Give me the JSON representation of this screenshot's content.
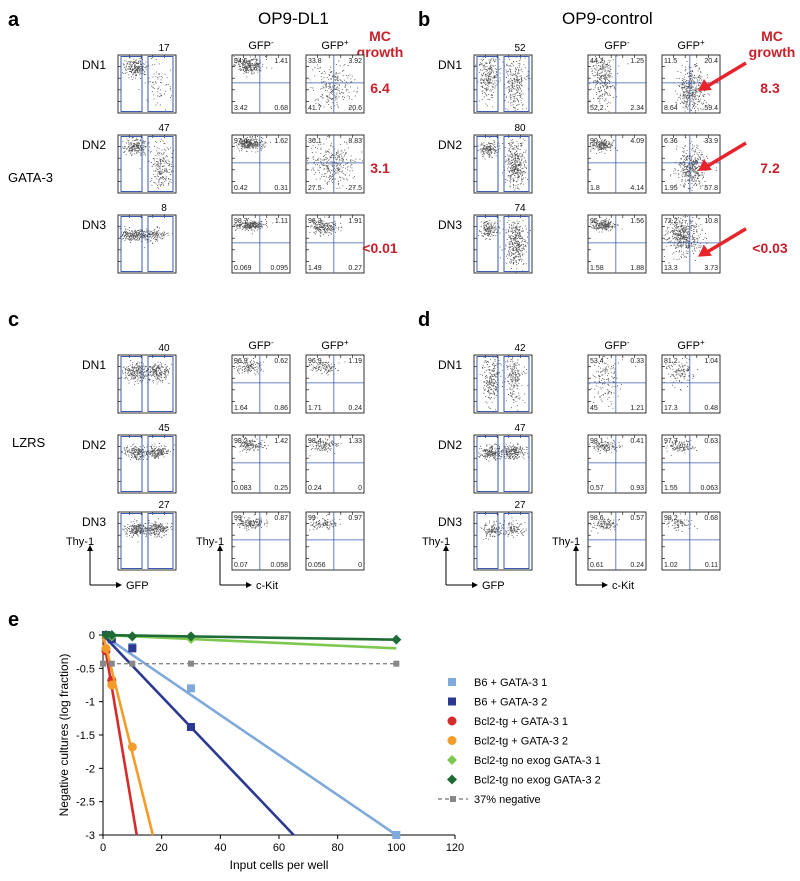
{
  "panels": {
    "a": {
      "letter": "a",
      "title": "OP9-DL1"
    },
    "b": {
      "letter": "b",
      "title": "OP9-control"
    },
    "c": {
      "letter": "c"
    },
    "d": {
      "letter": "d"
    },
    "e": {
      "letter": "e"
    }
  },
  "labels": {
    "gata3": "GATA-3",
    "lzrs": "LZRS",
    "gfp_neg": "GFP",
    "gfp_neg_sup": "-",
    "gfp_pos": "GFP",
    "gfp_pos_sup": "+",
    "mc_line1": "MC",
    "mc_line2": "growth",
    "thy1": "Thy-1",
    "gfp_axis": "GFP",
    "ckit_axis": "c-Kit",
    "dn": [
      "DN1",
      "DN2",
      "DN3"
    ]
  },
  "flow": {
    "a": {
      "rows": [
        {
          "pct": "17",
          "neg": [
            "94.5",
            "1.41",
            "3.42",
            "0.68"
          ],
          "pos": [
            "33.8",
            "3.92",
            "41.7",
            "20.6"
          ],
          "mc": "6.4"
        },
        {
          "pct": "47",
          "neg": [
            "97.6",
            "1.62",
            "0.42",
            "0.31"
          ],
          "pos": [
            "36.1",
            "8.83",
            "27.5",
            "27.5"
          ],
          "mc": "3.1"
        },
        {
          "pct": "8",
          "neg": [
            "98.7",
            "1.11",
            "0.069",
            "0.095"
          ],
          "pos": [
            "96.3",
            "1.91",
            "1.49",
            "0.27"
          ],
          "mc": "<0.01"
        }
      ]
    },
    "b": {
      "rows": [
        {
          "pct": "52",
          "neg": [
            "44.2",
            "1.25",
            "52.2",
            "2.34"
          ],
          "pos": [
            "11.5",
            "20.4",
            "8.64",
            "59.4"
          ],
          "mc": "8.3"
        },
        {
          "pct": "80",
          "neg": [
            "90",
            "4.09",
            "1.8",
            "4.14"
          ],
          "pos": [
            "6.36",
            "33.9",
            "1.95",
            "57.8"
          ],
          "mc": "7.2"
        },
        {
          "pct": "74",
          "neg": [
            "95",
            "1.56",
            "1.58",
            "1.88"
          ],
          "pos": [
            "72.2",
            "10.8",
            "13.3",
            "3.73"
          ],
          "mc": "<0.03"
        }
      ]
    },
    "c": {
      "rows": [
        {
          "pct": "40",
          "neg": [
            "96.9",
            "0.62",
            "1.64",
            "0.86"
          ],
          "pos": [
            "96.9",
            "1.19",
            "1.71",
            "0.24"
          ]
        },
        {
          "pct": "45",
          "neg": [
            "98.2",
            "1.42",
            "0.083",
            "0.25"
          ],
          "pos": [
            "98.4",
            "1.33",
            "0.24",
            "0"
          ]
        },
        {
          "pct": "27",
          "neg": [
            "99",
            "0.87",
            "0.07",
            "0.058"
          ],
          "pos": [
            "99",
            "0.97",
            "0.056",
            "0"
          ]
        }
      ]
    },
    "d": {
      "rows": [
        {
          "pct": "42",
          "neg": [
            "53.4",
            "0.33",
            "45",
            "1.21"
          ],
          "pos": [
            "81.2",
            "1.04",
            "17.3",
            "0.48"
          ]
        },
        {
          "pct": "47",
          "neg": [
            "98.1",
            "0.41",
            "0.57",
            "0.93"
          ],
          "pos": [
            "97.7",
            "0.63",
            "1.55",
            "0.063"
          ]
        },
        {
          "pct": "27",
          "neg": [
            "98.6",
            "0.57",
            "0.61",
            "0.24"
          ],
          "pos": [
            "98.2",
            "0.68",
            "1.02",
            "0.11"
          ]
        }
      ]
    }
  },
  "chart_data": {
    "type": "scatter",
    "xlabel": "Input cells per well",
    "ylabel": "Negative cultures (log fraction)",
    "xlim": [
      0,
      120
    ],
    "ylim": [
      -3,
      0
    ],
    "xticks": [
      0,
      20,
      40,
      60,
      80,
      100,
      120
    ],
    "yticks": [
      0,
      -0.5,
      -1,
      -1.5,
      -2,
      -2.5,
      -3
    ],
    "series": [
      {
        "name": "B6 + GATA-3 1",
        "color": "#7ea9da",
        "marker": "square",
        "points": [
          [
            1,
            0
          ],
          [
            3,
            -0.07
          ],
          [
            10,
            -0.18
          ],
          [
            30,
            -0.8
          ],
          [
            100,
            -3
          ]
        ],
        "fit": [
          [
            0,
            0
          ],
          [
            100,
            -3
          ]
        ]
      },
      {
        "name": "B6 + GATA-3 2",
        "color": "#2b3a90",
        "marker": "square",
        "points": [
          [
            1,
            0
          ],
          [
            3,
            -0.06
          ],
          [
            10,
            -0.2
          ],
          [
            30,
            -1.38
          ]
        ],
        "fit": [
          [
            0,
            0
          ],
          [
            65,
            -3
          ]
        ]
      },
      {
        "name": "Bcl2-tg + GATA-3 1",
        "color": "#d62b2b",
        "marker": "circle",
        "points": [
          [
            1,
            -0.24
          ],
          [
            3,
            -0.68
          ]
        ],
        "fit": [
          [
            0,
            0
          ],
          [
            11.5,
            -3
          ]
        ]
      },
      {
        "name": "Bcl2-tg + GATA-3 2",
        "color": "#f39c2a",
        "marker": "circle",
        "points": [
          [
            1,
            -0.2
          ],
          [
            3,
            -0.75
          ],
          [
            10,
            -1.68
          ]
        ],
        "fit": [
          [
            0,
            0
          ],
          [
            17,
            -3
          ]
        ]
      },
      {
        "name": "Bcl2-tg no exog GATA-3 1",
        "color": "#7ec850",
        "marker": "diamond",
        "points": [
          [
            1,
            0
          ],
          [
            3,
            -0.02
          ],
          [
            10,
            -0.02
          ],
          [
            30,
            -0.06
          ]
        ],
        "fit": [
          [
            0,
            0
          ],
          [
            100,
            -0.2
          ]
        ]
      },
      {
        "name": "Bcl2-tg no exog GATA-3 2",
        "color": "#1e6b35",
        "marker": "diamond",
        "points": [
          [
            1,
            0
          ],
          [
            3,
            0
          ],
          [
            10,
            -0.02
          ],
          [
            30,
            -0.02
          ],
          [
            100,
            -0.07
          ]
        ],
        "fit": [
          [
            0,
            0
          ],
          [
            100,
            -0.07
          ]
        ]
      },
      {
        "name": "37% negative",
        "color": "#888888",
        "marker": "small-square",
        "dashed": true,
        "points": [
          [
            0,
            -0.43
          ],
          [
            3,
            -0.43
          ],
          [
            10,
            -0.43
          ],
          [
            30,
            -0.43
          ],
          [
            100,
            -0.43
          ]
        ],
        "fit": [
          [
            0,
            -0.43
          ],
          [
            100,
            -0.43
          ]
        ]
      }
    ]
  }
}
